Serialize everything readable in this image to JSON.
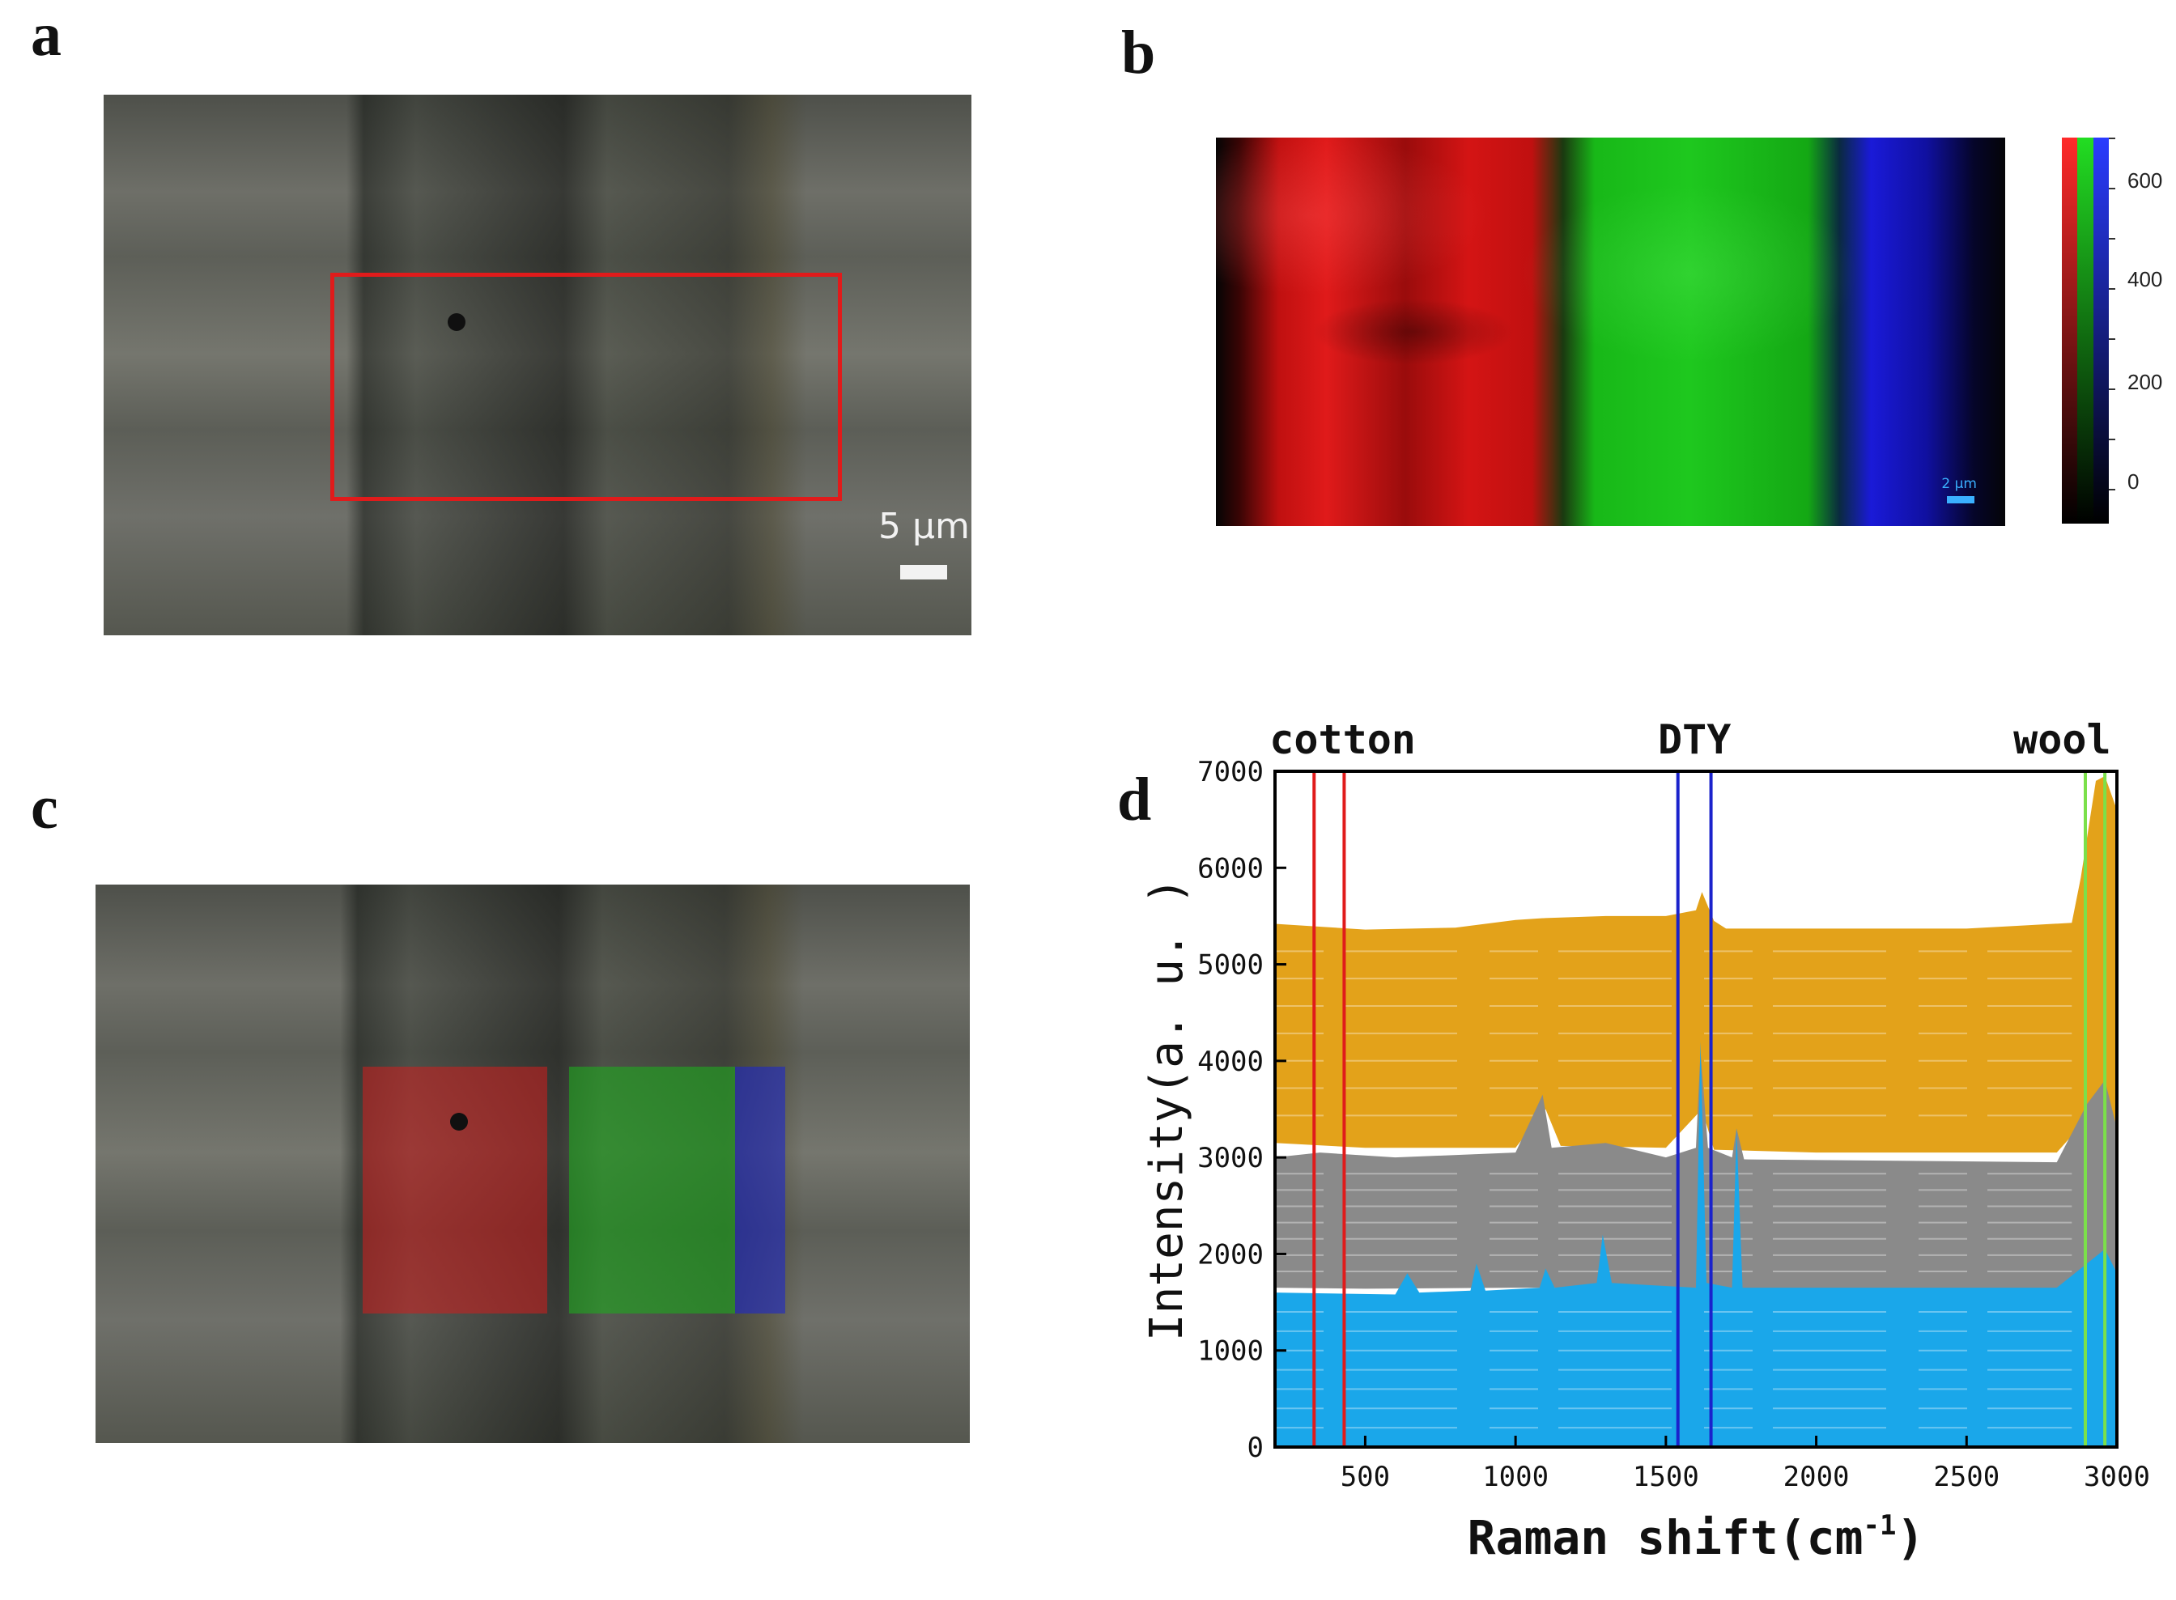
{
  "panels": {
    "a": {
      "letter": "a",
      "scale_label": "5 µm",
      "roi_color": "#e01b1b"
    },
    "b": {
      "letter": "b",
      "scale_label": "2 µm",
      "colorbar_ticks": [
        "600",
        "400",
        "200",
        "0"
      ],
      "colorbar_colors": [
        "#ff2a2a",
        "#22dd22",
        "#2a3cff"
      ]
    },
    "c": {
      "letter": "c"
    },
    "d": {
      "letter": "d"
    }
  },
  "chart_data": {
    "type": "line",
    "xlabel": "Raman shift(cm",
    "xlabel_sup": "-1",
    "xlabel_close": ")",
    "ylabel": "Intensity(a. u. )",
    "xlim": [
      200,
      3000
    ],
    "ylim": [
      0,
      7000
    ],
    "xticks": [
      500,
      1000,
      1500,
      2000,
      2500,
      3000
    ],
    "yticks": [
      0,
      1000,
      2000,
      3000,
      4000,
      5000,
      6000,
      7000
    ],
    "annotations": [
      {
        "label": "cotton",
        "color": "#e01b1b",
        "lines_x": [
          330,
          430
        ]
      },
      {
        "label": "DTY",
        "color": "#1a22cc",
        "lines_x": [
          1540,
          1650
        ]
      },
      {
        "label": "wool",
        "color": "#7be04a",
        "lines_x": [
          2895,
          2960
        ]
      }
    ],
    "series": [
      {
        "color": "#e3a21a",
        "upper": [
          [
            200,
            5420
          ],
          [
            300,
            5400
          ],
          [
            500,
            5360
          ],
          [
            800,
            5380
          ],
          [
            1000,
            5460
          ],
          [
            1100,
            5480
          ],
          [
            1300,
            5500
          ],
          [
            1500,
            5500
          ],
          [
            1600,
            5560
          ],
          [
            1620,
            5750
          ],
          [
            1660,
            5450
          ],
          [
            1700,
            5370
          ],
          [
            2500,
            5370
          ],
          [
            2850,
            5430
          ],
          [
            2880,
            5900
          ],
          [
            2930,
            6900
          ],
          [
            2960,
            6950
          ],
          [
            3000,
            6600
          ]
        ],
        "lower": [
          [
            200,
            3150
          ],
          [
            500,
            3100
          ],
          [
            1000,
            3100
          ],
          [
            1100,
            3500
          ],
          [
            1150,
            3120
          ],
          [
            1500,
            3100
          ],
          [
            1620,
            3500
          ],
          [
            1660,
            3080
          ],
          [
            2000,
            3050
          ],
          [
            2800,
            3050
          ],
          [
            2900,
            3400
          ],
          [
            2960,
            3600
          ],
          [
            3000,
            3100
          ]
        ]
      },
      {
        "color": "#8a8a8a",
        "upper": [
          [
            200,
            3000
          ],
          [
            350,
            3050
          ],
          [
            600,
            3000
          ],
          [
            1000,
            3050
          ],
          [
            1090,
            3650
          ],
          [
            1120,
            3100
          ],
          [
            1300,
            3150
          ],
          [
            1500,
            3000
          ],
          [
            1600,
            3100
          ],
          [
            1615,
            4100
          ],
          [
            1640,
            3100
          ],
          [
            1720,
            3000
          ],
          [
            1735,
            3300
          ],
          [
            1760,
            2980
          ],
          [
            2800,
            2950
          ],
          [
            2900,
            3550
          ],
          [
            2960,
            3800
          ],
          [
            3000,
            3300
          ]
        ],
        "lower": [
          [
            200,
            1650
          ],
          [
            500,
            1640
          ],
          [
            1000,
            1650
          ],
          [
            1500,
            1650
          ],
          [
            2000,
            1640
          ],
          [
            2800,
            1640
          ],
          [
            2950,
            1900
          ],
          [
            3000,
            1700
          ]
        ]
      },
      {
        "color": "#1aa7ea",
        "upper": [
          [
            200,
            1600
          ],
          [
            600,
            1580
          ],
          [
            640,
            1800
          ],
          [
            680,
            1600
          ],
          [
            850,
            1620
          ],
          [
            870,
            1900
          ],
          [
            900,
            1620
          ],
          [
            1080,
            1650
          ],
          [
            1100,
            1850
          ],
          [
            1130,
            1650
          ],
          [
            1270,
            1700
          ],
          [
            1290,
            2200
          ],
          [
            1320,
            1700
          ],
          [
            1600,
            1650
          ],
          [
            1615,
            4200
          ],
          [
            1635,
            1700
          ],
          [
            1720,
            1650
          ],
          [
            1735,
            3300
          ],
          [
            1755,
            1650
          ],
          [
            2800,
            1650
          ],
          [
            2900,
            1900
          ],
          [
            2960,
            2050
          ],
          [
            3000,
            1800
          ]
        ],
        "lower": [
          [
            200,
            0
          ],
          [
            3000,
            0
          ]
        ]
      }
    ]
  }
}
